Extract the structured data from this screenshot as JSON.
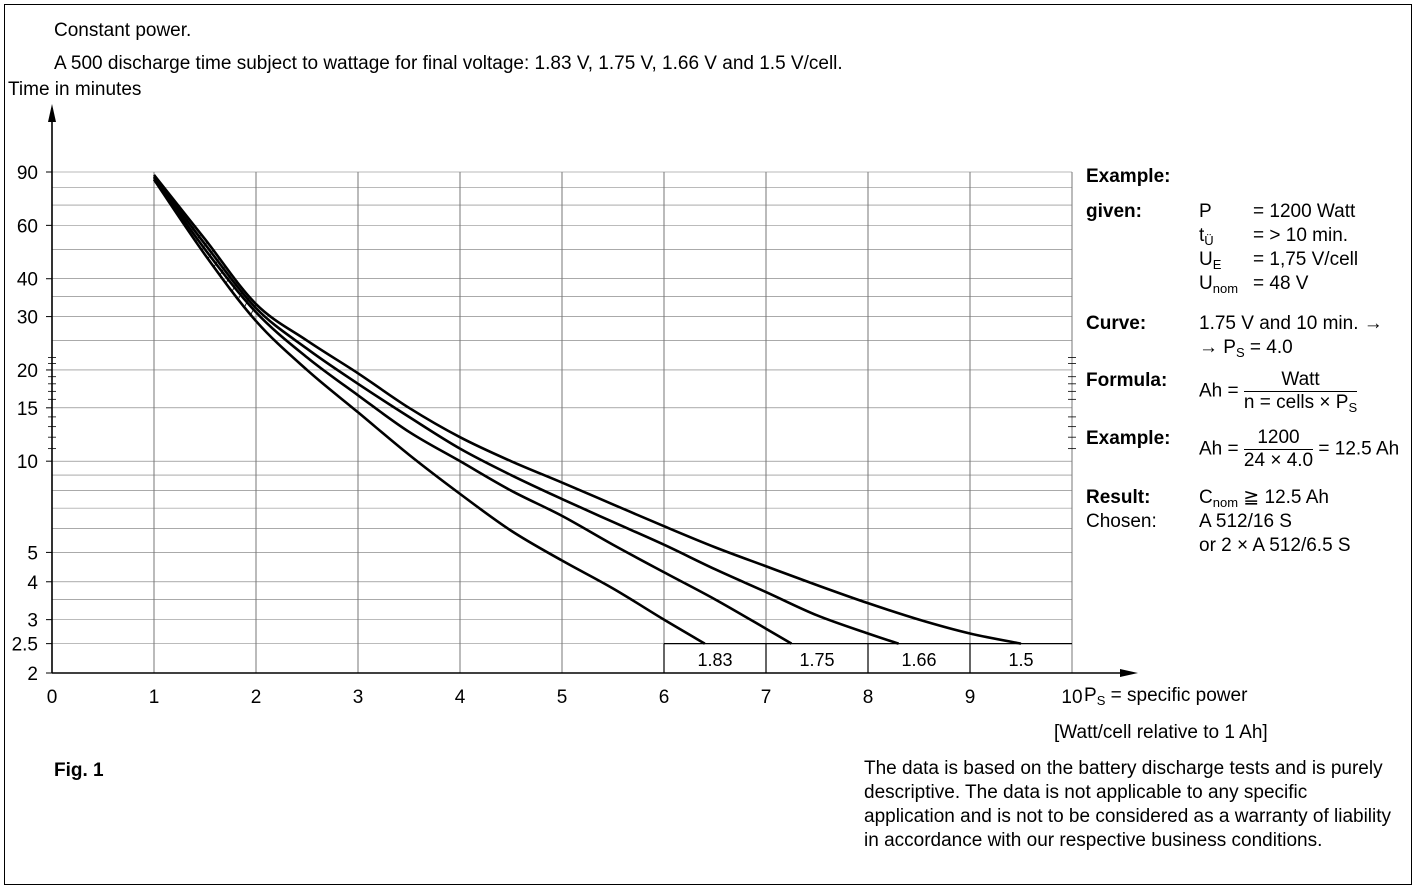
{
  "header": {
    "line1": "Constant power.",
    "line2": "A 500 discharge time subject to wattage for final voltage: 1.83 V, 1.75 V, 1.66 V and 1.5 V/cell."
  },
  "chart_data": {
    "type": "line",
    "title": "",
    "ylabel": "Time in minutes",
    "xlabel": "P_S = specific power",
    "xlabel_main": "P",
    "xlabel_sub": "S",
    "xlabel_rest": " = specific power",
    "xlabel_unit": "[Watt/cell relative to 1 Ah]",
    "xlim": [
      0,
      10
    ],
    "ylim": [
      2,
      100
    ],
    "yscale": "log",
    "grid": true,
    "x_ticks": [
      "0",
      "1",
      "2",
      "3",
      "4",
      "5",
      "6",
      "7",
      "8",
      "9",
      "10"
    ],
    "y_ticks": [
      {
        "value": 90,
        "label": "90"
      },
      {
        "value": 60,
        "label": "60"
      },
      {
        "value": 40,
        "label": "40"
      },
      {
        "value": 30,
        "label": "30"
      },
      {
        "value": 20,
        "label": "20"
      },
      {
        "value": 15,
        "label": "15"
      },
      {
        "value": 10,
        "label": "10"
      },
      {
        "value": 5,
        "label": "5"
      },
      {
        "value": 4,
        "label": "4"
      },
      {
        "value": 3,
        "label": "3"
      },
      {
        "value": 2.5,
        "label": "2.5"
      },
      {
        "value": 2,
        "label": "2"
      }
    ],
    "series": [
      {
        "name": "1.83",
        "x": [
          1,
          1.5,
          2,
          2.5,
          3,
          3.5,
          4,
          4.5,
          5,
          5.5,
          6,
          6.4
        ],
        "y": [
          85,
          48,
          29,
          20,
          14.5,
          10.5,
          7.8,
          5.9,
          4.7,
          3.8,
          3.0,
          2.5
        ]
      },
      {
        "name": "1.75",
        "x": [
          1,
          1.5,
          2,
          2.5,
          3,
          3.5,
          4,
          4.5,
          5,
          5.5,
          6,
          6.5,
          7,
          7.25
        ],
        "y": [
          86,
          50,
          31,
          22,
          16.5,
          12.5,
          10,
          8,
          6.6,
          5.3,
          4.3,
          3.5,
          2.8,
          2.5
        ]
      },
      {
        "name": "1.66",
        "x": [
          1,
          1.5,
          2,
          2.5,
          3,
          3.5,
          4,
          4.5,
          5,
          5.5,
          6,
          6.5,
          7,
          7.5,
          8,
          8.3
        ],
        "y": [
          87,
          52,
          32,
          23.5,
          18,
          14,
          11,
          9,
          7.5,
          6.3,
          5.3,
          4.4,
          3.7,
          3.1,
          2.7,
          2.5
        ]
      },
      {
        "name": "1.5",
        "x": [
          1,
          1.5,
          2,
          2.5,
          3,
          3.5,
          4,
          4.5,
          5,
          5.5,
          6,
          6.5,
          7,
          7.5,
          8,
          8.5,
          9,
          9.5
        ],
        "y": [
          88,
          54,
          33,
          25,
          19.5,
          15,
          12,
          10,
          8.5,
          7.2,
          6.1,
          5.2,
          4.5,
          3.9,
          3.4,
          3.0,
          2.7,
          2.5
        ]
      }
    ],
    "curve_labels": [
      "1.83",
      "1.75",
      "1.66",
      "1.5"
    ],
    "figure_label": "Fig. 1"
  },
  "example": {
    "heading": "Example:",
    "given_label": "given:",
    "given": [
      {
        "sym": "P",
        "sub": "",
        "val": "= 1200 Watt"
      },
      {
        "sym": "t",
        "sub": "Ü",
        "val": "= > 10 min."
      },
      {
        "sym": "U",
        "sub": "E",
        "val": "= 1,75 V/cell"
      },
      {
        "sym": "U",
        "sub": "nom",
        "val": "= 48 V"
      }
    ],
    "curve_label": "Curve:",
    "curve_line1": "1.75 V and 10 min. →",
    "curve_line2_pre": "→ P",
    "curve_line2_sub": "S",
    "curve_line2_post": " = 4.0",
    "formula_label": "Formula:",
    "formula_lhs": "Ah =",
    "formula_num": "Watt",
    "formula_den_pre": "n = cells × P",
    "formula_den_sub": "S",
    "example2_label": "Example:",
    "example2_lhs": "Ah =",
    "example2_num": "1200",
    "example2_den": "24 × 4.0",
    "example2_result": "= 12.5 Ah",
    "result_label": "Result:",
    "result_sym": "C",
    "result_sub": "nom",
    "result_val": " ≧ 12.5 Ah",
    "chosen_label": "Chosen:",
    "chosen1": "A 512/16 S",
    "chosen2": "or 2 × A 512/6.5 S"
  },
  "note": "The data is based on the battery discharge tests and is purely descriptive. The data is not applicable to any specific application and is not to be considered as a warranty of liability in accordance with our respective business conditions."
}
